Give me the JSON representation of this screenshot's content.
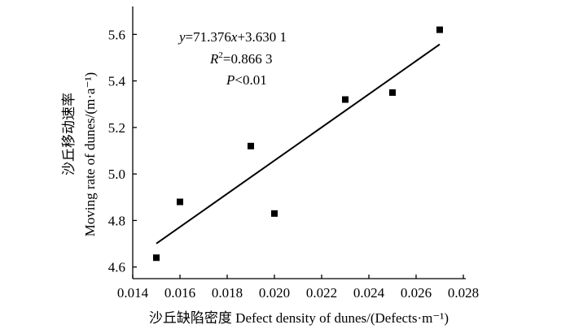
{
  "chart_data": {
    "type": "scatter",
    "xlabel": "沙丘缺陷密度 Defect density of dunes/(Defects·m⁻¹)",
    "ylabel_cn": "沙丘移动速率",
    "ylabel_en": "Moving rate of dunes/(m·a⁻¹)",
    "xlim": [
      0.014,
      0.028
    ],
    "ylim": [
      4.55,
      5.72
    ],
    "x_ticks": [
      "0.014",
      "0.016",
      "0.018",
      "0.020",
      "0.022",
      "0.024",
      "0.026",
      "0.028"
    ],
    "y_ticks": [
      "4.6",
      "4.8",
      "5.0",
      "5.2",
      "5.4",
      "5.6"
    ],
    "points": [
      {
        "x": 0.015,
        "y": 4.64
      },
      {
        "x": 0.016,
        "y": 4.88
      },
      {
        "x": 0.019,
        "y": 5.12
      },
      {
        "x": 0.02,
        "y": 4.83
      },
      {
        "x": 0.023,
        "y": 5.32
      },
      {
        "x": 0.025,
        "y": 5.35
      },
      {
        "x": 0.027,
        "y": 5.62
      }
    ],
    "fit": {
      "slope": 71.376,
      "intercept": 3.6301,
      "x_range": [
        0.015,
        0.027
      ]
    },
    "equation": {
      "y": "y",
      "eq": "=71.376",
      "x": "x",
      "rest": "+3.630 1"
    },
    "r2": {
      "r": "R",
      "sup": "2",
      "rest": "=0.866 3"
    },
    "p": {
      "p": "P",
      "rest": "<0.01"
    },
    "grid": false,
    "legend": "none"
  }
}
